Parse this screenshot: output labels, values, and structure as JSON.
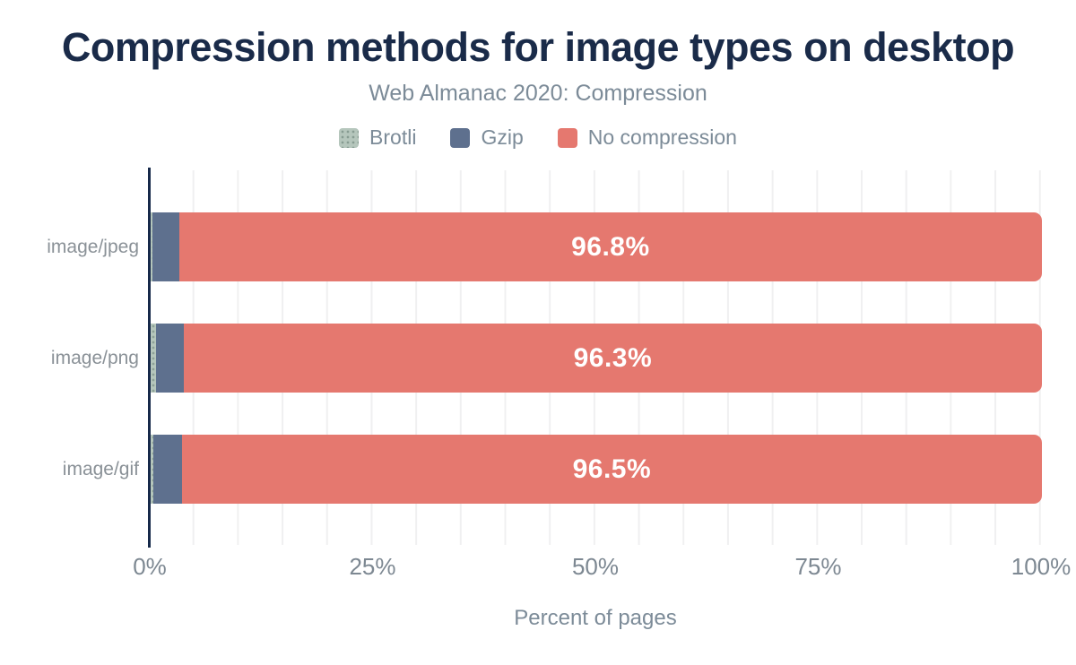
{
  "header": {
    "title": "Compression methods for image types on desktop",
    "subtitle": "Web Almanac 2020: Compression"
  },
  "legend": [
    {
      "label": "Brotli",
      "color": "#b5c6bc",
      "pattern": "dots"
    },
    {
      "label": "Gzip",
      "color": "#5e708e",
      "pattern": "solid"
    },
    {
      "label": "No compression",
      "color": "#e5786f",
      "pattern": "solid"
    }
  ],
  "chart_data": {
    "type": "bar",
    "orientation": "horizontal",
    "stacked": true,
    "title": "Compression methods for image types on desktop",
    "subtitle": "Web Almanac 2020: Compression",
    "categories": [
      "image/jpeg",
      "image/png",
      "image/gif"
    ],
    "series": [
      {
        "name": "Brotli",
        "color": "#b5c6bc",
        "pattern": "dots",
        "values": [
          0.2,
          0.6,
          0.3
        ]
      },
      {
        "name": "Gzip",
        "color": "#5e708e",
        "pattern": "solid",
        "values": [
          3.0,
          3.1,
          3.2
        ]
      },
      {
        "name": "No compression",
        "color": "#e5786f",
        "pattern": "solid",
        "values": [
          96.8,
          96.3,
          96.5
        ],
        "value_labels": [
          "96.8%",
          "96.3%",
          "96.5%"
        ]
      }
    ],
    "xlabel": "Percent of pages",
    "ylabel": "",
    "xlim": [
      0,
      100
    ],
    "x_ticks": [
      "0%",
      "25%",
      "50%",
      "75%",
      "100%"
    ],
    "x_tick_positions": [
      0,
      25,
      50,
      75,
      100
    ],
    "grid": "vertical minor gridlines every 5%",
    "legend_position": "top center",
    "value_label_color": "#ffffff",
    "axis_color": "#16294a"
  }
}
